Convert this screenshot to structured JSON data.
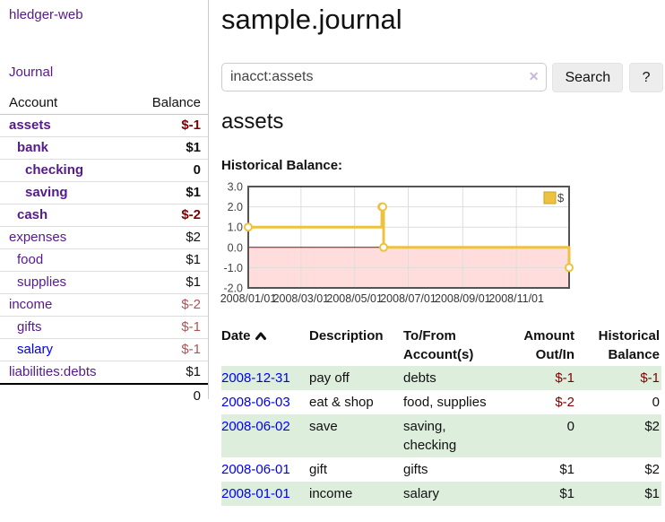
{
  "app": {
    "brand": "hledger-web",
    "nav": {
      "journal": "Journal"
    }
  },
  "sidebar": {
    "headers": {
      "account": "Account",
      "balance": "Balance"
    },
    "accounts": [
      {
        "name": "assets",
        "depth": 1,
        "balance": "$-1",
        "bold": true,
        "balance_color": "dark-red",
        "link_color": "purple"
      },
      {
        "name": "bank",
        "depth": 2,
        "balance": "$1",
        "bold": true,
        "balance_color": "black",
        "link_color": "purple"
      },
      {
        "name": "checking",
        "depth": 3,
        "balance": "0",
        "bold": true,
        "balance_color": "black",
        "link_color": "purple"
      },
      {
        "name": "saving",
        "depth": 3,
        "balance": "$1",
        "bold": true,
        "balance_color": "black",
        "link_color": "purple"
      },
      {
        "name": "cash",
        "depth": 2,
        "balance": "$-2",
        "bold": true,
        "balance_color": "dark-red",
        "link_color": "purple"
      },
      {
        "name": "expenses",
        "depth": 1,
        "balance": "$2",
        "bold": false,
        "balance_color": "black",
        "link_color": "purple"
      },
      {
        "name": "food",
        "depth": 2,
        "balance": "$1",
        "bold": false,
        "balance_color": "black",
        "link_color": "purple"
      },
      {
        "name": "supplies",
        "depth": 2,
        "balance": "$1",
        "bold": false,
        "balance_color": "black",
        "link_color": "purple"
      },
      {
        "name": "income",
        "depth": 1,
        "balance": "$-2",
        "bold": false,
        "balance_color": "soft-red",
        "link_color": "purple"
      },
      {
        "name": "gifts",
        "depth": 2,
        "balance": "$-1",
        "bold": false,
        "balance_color": "soft-red",
        "link_color": "purple"
      },
      {
        "name": "salary",
        "depth": 2,
        "balance": "$-1",
        "bold": false,
        "balance_color": "soft-red",
        "link_color": "blue"
      },
      {
        "name": "liabilities:debts",
        "depth": 1,
        "balance": "$1",
        "bold": false,
        "balance_color": "black",
        "link_color": "purple"
      }
    ],
    "total": "0"
  },
  "main": {
    "title": "sample.journal",
    "search": {
      "value": "inacct:assets",
      "clear_icon": "✕",
      "button_label": "Search",
      "help_label": "?"
    },
    "account_heading": "assets",
    "chart_title": "Historical Balance:"
  },
  "chart_data": {
    "type": "line",
    "step": true,
    "title": "Historical Balance:",
    "x": [
      "2008-01-01",
      "2008-06-01",
      "2008-06-02",
      "2008-06-03",
      "2008-12-31"
    ],
    "series": [
      {
        "name": "$",
        "values": [
          1,
          2,
          2,
          0,
          -1
        ]
      }
    ],
    "xrange": [
      "2008-01-01",
      "2008-12-31"
    ],
    "ylim": [
      -2,
      3
    ],
    "yticks": [
      3,
      2,
      1,
      0,
      -1,
      -2
    ],
    "ytick_labels": [
      "3.0",
      "2.0",
      "1.0",
      "0.0",
      "-1.0",
      "-2.0"
    ],
    "xticks": [
      "2008-01-01",
      "2008-03-01",
      "2008-05-01",
      "2008-07-01",
      "2008-09-01",
      "2008-11-01"
    ],
    "xtick_labels": [
      "2008/01/01",
      "2008/03/01",
      "2008/05/01",
      "2008/07/01",
      "2008/09/01",
      "2008/11/01"
    ],
    "legend_position": "top-right",
    "grid": true,
    "colors": {
      "series": "#EDC240",
      "marker_fill": "#FFFFFF",
      "negative_region": "#FFDDDD",
      "zero_line": "#990000",
      "gridline": "#DDDDDD",
      "plot_border": "#545454",
      "legend_border": "#C9A227"
    }
  },
  "register": {
    "headers": {
      "date": "Date",
      "description": "Description",
      "tofrom": [
        "To/From",
        "Account(s)"
      ],
      "amount": [
        "Amount",
        "Out/In"
      ],
      "balance": [
        "Historical",
        "Balance"
      ]
    },
    "rows": [
      {
        "date": "2008-12-31",
        "description": "pay off",
        "accounts": "debts",
        "amount": "$-1",
        "amount_negative": true,
        "balance": "$-1",
        "balance_negative": true,
        "shaded": true
      },
      {
        "date": "2008-06-03",
        "description": "eat & shop",
        "accounts": "food, supplies",
        "amount": "$-2",
        "amount_negative": true,
        "balance": "0",
        "balance_negative": false,
        "shaded": false
      },
      {
        "date": "2008-06-02",
        "description": "save",
        "accounts": "saving, checking",
        "amount": "0",
        "amount_negative": false,
        "balance": "$2",
        "balance_negative": false,
        "shaded": true
      },
      {
        "date": "2008-06-01",
        "description": "gift",
        "accounts": "gifts",
        "amount": "$1",
        "amount_negative": false,
        "balance": "$2",
        "balance_negative": false,
        "shaded": false
      },
      {
        "date": "2008-01-01",
        "description": "income",
        "accounts": "salary",
        "amount": "$1",
        "amount_negative": false,
        "balance": "$1",
        "balance_negative": false,
        "shaded": true
      }
    ]
  },
  "colors": {
    "link_purple": "#551A8B",
    "link_blue": "#0000EE",
    "negative_strong": "#800000",
    "negative_soft": "#AA5555",
    "row_highlight": "#DDEEDD"
  }
}
